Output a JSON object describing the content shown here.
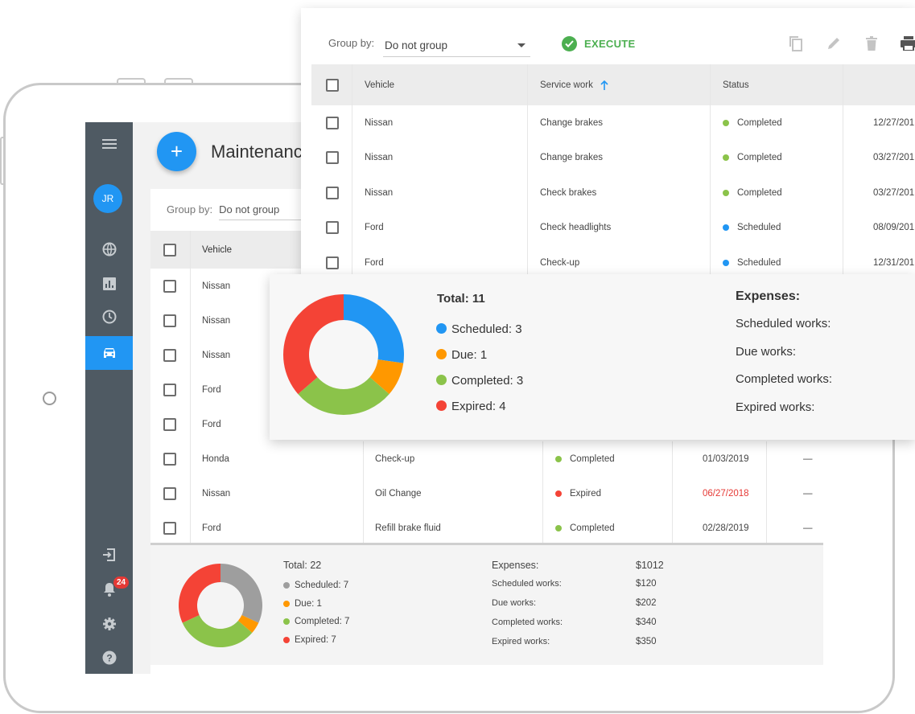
{
  "colors": {
    "accent": "#2196f3",
    "scheduled": "#2196f3",
    "due": "#ff9800",
    "completed": "#8bc34a",
    "expired": "#f44336",
    "unknown": "#9e9e9e",
    "execute": "#4caf50",
    "expired_date": "#e53935"
  },
  "sidebar": {
    "avatar_initials": "JR",
    "notification_count": "24",
    "icons": [
      "menu-icon",
      "globe-icon",
      "chart-icon",
      "clock-icon",
      "car-icon",
      "logout-icon",
      "bell-icon",
      "gear-icon",
      "help-icon"
    ]
  },
  "app": {
    "title": "Maintenanc",
    "group_by_label": "Group by:",
    "group_by_value": "Do not group",
    "columns": {
      "vehicle": "Vehicle"
    },
    "rows": [
      {
        "vehicle": "Nissan"
      },
      {
        "vehicle": "Nissan"
      },
      {
        "vehicle": "Nissan"
      },
      {
        "vehicle": "Ford"
      },
      {
        "vehicle": "Ford"
      },
      {
        "vehicle": "Honda",
        "work": "Check-up",
        "status": "Completed",
        "date": "01/03/2019",
        "extra": "—"
      },
      {
        "vehicle": "Nissan",
        "work": "Oil Change",
        "status": "Expired",
        "date": "06/27/2018",
        "extra": "—"
      },
      {
        "vehicle": "Ford",
        "work": "Refill brake fluid",
        "status": "Completed",
        "date": "02/28/2019",
        "extra": "—"
      }
    ],
    "summary": {
      "total": "Total: 22",
      "legend": [
        "Scheduled: 7",
        "Due: 1",
        "Completed: 7",
        "Expired: 7"
      ],
      "expenses_label": "Expenses:",
      "expenses_total": "$1012",
      "lines": [
        {
          "label": "Scheduled works:",
          "value": "$120"
        },
        {
          "label": "Due works:",
          "value": "$202"
        },
        {
          "label": "Completed works:",
          "value": "$340"
        },
        {
          "label": "Expired works:",
          "value": "$350"
        }
      ]
    }
  },
  "front": {
    "group_by_label": "Group by:",
    "group_by_value": "Do not group",
    "execute_label": "EXECUTE",
    "columns": {
      "vehicle": "Vehicle",
      "work": "Service work",
      "status": "Status"
    },
    "rows": [
      {
        "vehicle": "Nissan",
        "work": "Change brakes",
        "status": "Completed",
        "date": "12/27/201"
      },
      {
        "vehicle": "Nissan",
        "work": "Change brakes",
        "status": "Completed",
        "date": "03/27/201"
      },
      {
        "vehicle": "Nissan",
        "work": "Check brakes",
        "status": "Completed",
        "date": "03/27/201"
      },
      {
        "vehicle": "Ford",
        "work": "Check headlights",
        "status": "Scheduled",
        "date": "08/09/201"
      },
      {
        "vehicle": "Ford",
        "work": "Check-up",
        "status": "Scheduled",
        "date": "12/31/201"
      }
    ]
  },
  "stats": {
    "total": "Total: 11",
    "legend": [
      "Scheduled: 3",
      "Due: 1",
      "Completed: 3",
      "Expired: 4"
    ],
    "expenses_label": "Expenses:",
    "lines": [
      "Scheduled works:",
      "Due works:",
      "Completed works:",
      "Expired works:"
    ]
  },
  "chart_data": [
    {
      "type": "pie",
      "categories": [
        "Scheduled",
        "Due",
        "Completed",
        "Expired"
      ],
      "values": [
        3,
        1,
        3,
        4
      ]
    },
    {
      "type": "pie",
      "categories": [
        "Scheduled",
        "Due",
        "Completed",
        "Expired"
      ],
      "values": [
        7,
        1,
        7,
        7
      ]
    }
  ]
}
